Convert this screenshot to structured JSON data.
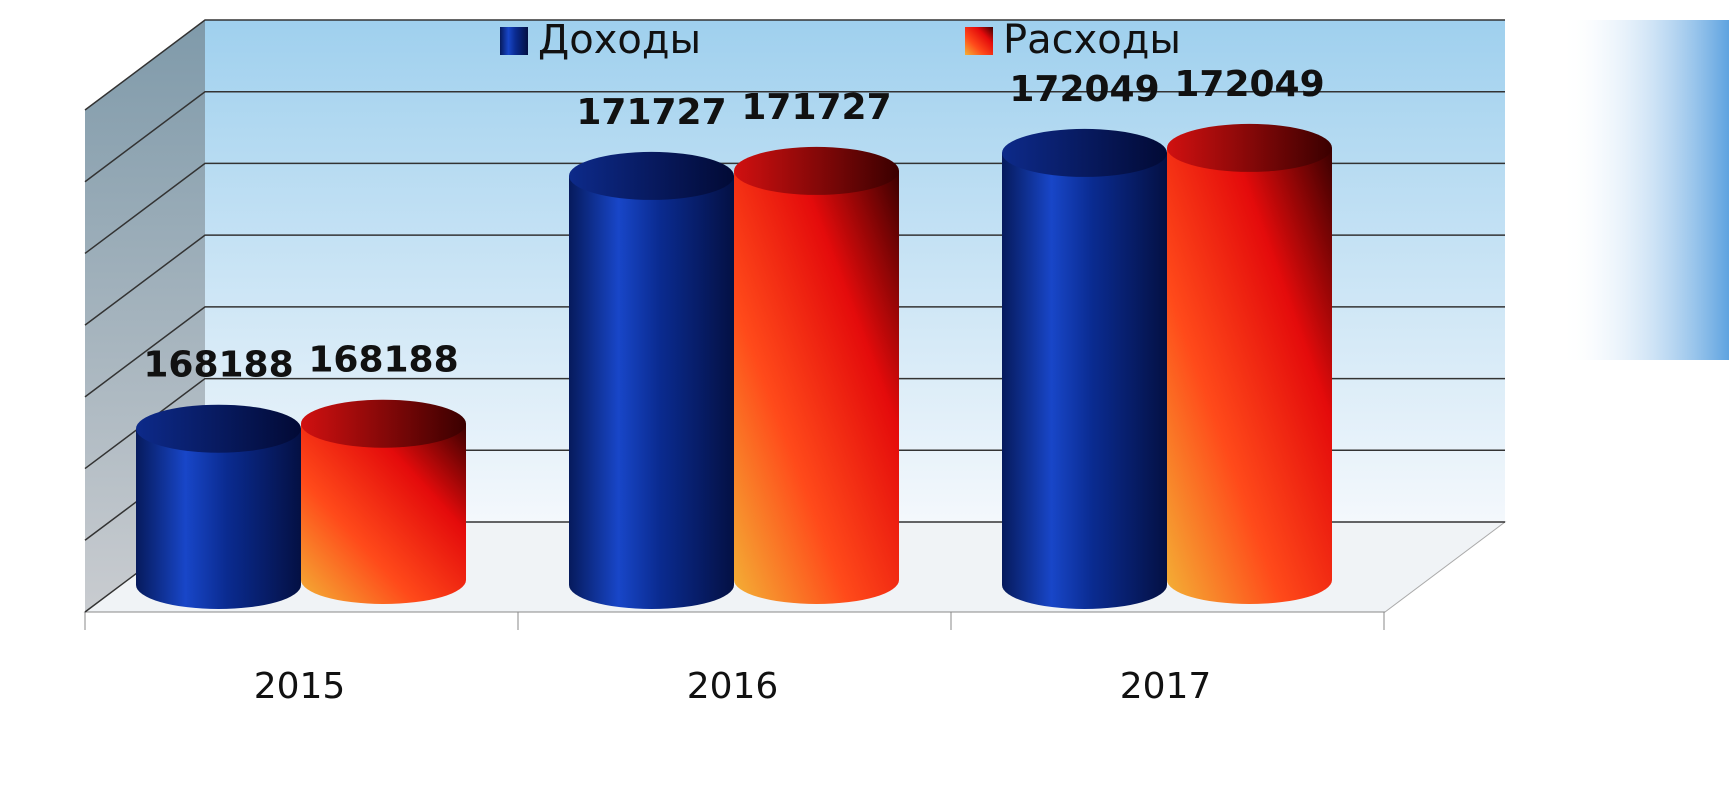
{
  "chart_data": {
    "type": "bar3d",
    "categories": [
      "2015",
      "2016",
      "2017"
    ],
    "series": [
      {
        "name": "Доходы",
        "color": "#0b2fa0",
        "values": [
          168188,
          171727,
          172049
        ]
      },
      {
        "name": "Расходы",
        "color": "#e81010",
        "values": [
          168188,
          171727,
          172049
        ]
      }
    ],
    "ylim": [
      166000,
      173000
    ],
    "yticks": [
      166000,
      167000,
      168000,
      169000,
      170000,
      171000,
      172000,
      173000
    ],
    "grid": true
  }
}
